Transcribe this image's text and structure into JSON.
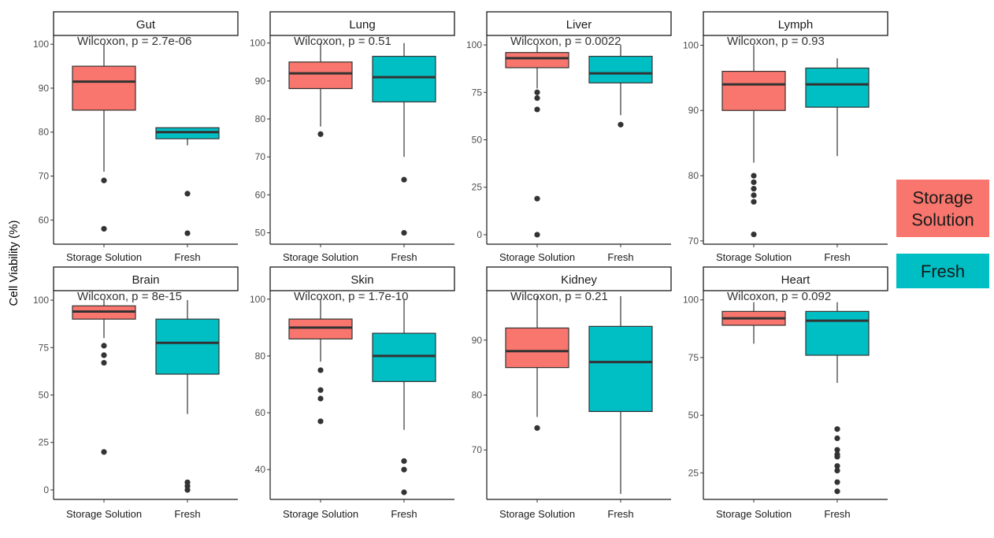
{
  "y_axis_label": "Cell Viability (%)",
  "colors": {
    "storage": "#f8766d",
    "fresh": "#00bfc4",
    "outline": "#333333",
    "median": "#333333",
    "outlier": "#333333"
  },
  "legend": [
    {
      "label": "Storage\nSolution",
      "color": "#f8766d"
    },
    {
      "label": "Fresh",
      "color": "#00bfc4"
    }
  ],
  "chart_data": [
    {
      "type": "box",
      "panel": "Gut",
      "annotation": "Wilcoxon, p = 2.7e-06",
      "ylim": [
        54.5,
        102
      ],
      "yticks": [
        60,
        70,
        80,
        90,
        100
      ],
      "categories": [
        "Storage Solution",
        "Fresh"
      ],
      "series": [
        {
          "name": "Storage Solution",
          "whisker_low": 71,
          "q1": 85,
          "median": 91.5,
          "q3": 95,
          "whisker_high": 100,
          "outliers": [
            69,
            58
          ]
        },
        {
          "name": "Fresh",
          "whisker_low": 77,
          "q1": 78.5,
          "median": 80,
          "q3": 81,
          "whisker_high": 81,
          "outliers": [
            66,
            57
          ]
        }
      ]
    },
    {
      "type": "box",
      "panel": "Lung",
      "annotation": "Wilcoxon, p = 0.51",
      "ylim": [
        47,
        102
      ],
      "yticks": [
        50,
        60,
        70,
        80,
        90,
        100
      ],
      "categories": [
        "Storage Solution",
        "Fresh"
      ],
      "series": [
        {
          "name": "Storage Solution",
          "whisker_low": 78,
          "q1": 88,
          "median": 92,
          "q3": 95,
          "whisker_high": 100,
          "outliers": [
            76
          ]
        },
        {
          "name": "Fresh",
          "whisker_low": 70,
          "q1": 84.5,
          "median": 91,
          "q3": 96.5,
          "whisker_high": 100,
          "outliers": [
            64,
            50
          ]
        }
      ]
    },
    {
      "type": "box",
      "panel": "Liver",
      "annotation": "Wilcoxon, p = 0.0022",
      "ylim": [
        -5,
        105
      ],
      "yticks": [
        0,
        25,
        50,
        75,
        100
      ],
      "categories": [
        "Storage Solution",
        "Fresh"
      ],
      "series": [
        {
          "name": "Storage Solution",
          "whisker_low": 77,
          "q1": 88,
          "median": 93,
          "q3": 96,
          "whisker_high": 100,
          "outliers": [
            75,
            72,
            66,
            19,
            0
          ]
        },
        {
          "name": "Fresh",
          "whisker_low": 63,
          "q1": 80,
          "median": 85,
          "q3": 94,
          "whisker_high": 100,
          "outliers": [
            58
          ]
        }
      ]
    },
    {
      "type": "box",
      "panel": "Lymph",
      "annotation": "Wilcoxon, p = 0.93",
      "ylim": [
        69.5,
        101.5
      ],
      "yticks": [
        70,
        80,
        90,
        100
      ],
      "categories": [
        "Storage Solution",
        "Fresh"
      ],
      "series": [
        {
          "name": "Storage Solution",
          "whisker_low": 82,
          "q1": 90,
          "median": 94,
          "q3": 96,
          "whisker_high": 100,
          "outliers": [
            80,
            79,
            78,
            77,
            76,
            71
          ]
        },
        {
          "name": "Fresh",
          "whisker_low": 83,
          "q1": 90.5,
          "median": 94,
          "q3": 96.5,
          "whisker_high": 98,
          "outliers": []
        }
      ]
    },
    {
      "type": "box",
      "panel": "Brain",
      "annotation": "Wilcoxon, p = 8e-15",
      "ylim": [
        -5,
        105
      ],
      "yticks": [
        0,
        25,
        50,
        75,
        100
      ],
      "categories": [
        "Storage Solution",
        "Fresh"
      ],
      "series": [
        {
          "name": "Storage Solution",
          "whisker_low": 80,
          "q1": 90,
          "median": 94,
          "q3": 97,
          "whisker_high": 100,
          "outliers": [
            76,
            71,
            67,
            20
          ]
        },
        {
          "name": "Fresh",
          "whisker_low": 40,
          "q1": 61,
          "median": 77.5,
          "q3": 90,
          "whisker_high": 100,
          "outliers": [
            4,
            2,
            0
          ]
        }
      ]
    },
    {
      "type": "box",
      "panel": "Skin",
      "annotation": "Wilcoxon, p = 1.7e-10",
      "ylim": [
        29.5,
        103
      ],
      "yticks": [
        40,
        60,
        80,
        100
      ],
      "categories": [
        "Storage Solution",
        "Fresh"
      ],
      "series": [
        {
          "name": "Storage Solution",
          "whisker_low": 78,
          "q1": 86,
          "median": 90,
          "q3": 93,
          "whisker_high": 100,
          "outliers": [
            75,
            68,
            65,
            57
          ]
        },
        {
          "name": "Fresh",
          "whisker_low": 54,
          "q1": 71,
          "median": 80,
          "q3": 88,
          "whisker_high": 100,
          "outliers": [
            43,
            40,
            32
          ]
        }
      ]
    },
    {
      "type": "box",
      "panel": "Kidney",
      "annotation": "Wilcoxon, p = 0.21",
      "ylim": [
        61,
        99
      ],
      "yticks": [
        70,
        80,
        90
      ],
      "categories": [
        "Storage Solution",
        "Fresh"
      ],
      "series": [
        {
          "name": "Storage Solution",
          "whisker_low": 76,
          "q1": 85,
          "median": 88,
          "q3": 92.2,
          "whisker_high": 98,
          "outliers": [
            74
          ]
        },
        {
          "name": "Fresh",
          "whisker_low": 62,
          "q1": 77,
          "median": 86,
          "q3": 92.5,
          "whisker_high": 98,
          "outliers": []
        }
      ]
    },
    {
      "type": "box",
      "panel": "Heart",
      "annotation": "Wilcoxon, p = 0.092",
      "ylim": [
        13.5,
        104
      ],
      "yticks": [
        25,
        50,
        75,
        100
      ],
      "categories": [
        "Storage Solution",
        "Fresh"
      ],
      "series": [
        {
          "name": "Storage Solution",
          "whisker_low": 81,
          "q1": 89,
          "median": 92,
          "q3": 95,
          "whisker_high": 99,
          "outliers": []
        },
        {
          "name": "Fresh",
          "whisker_low": 64,
          "q1": 76,
          "median": 91,
          "q3": 95,
          "whisker_high": 99,
          "outliers": [
            44,
            40,
            35,
            33,
            32,
            28,
            26,
            21,
            17
          ]
        }
      ]
    }
  ]
}
